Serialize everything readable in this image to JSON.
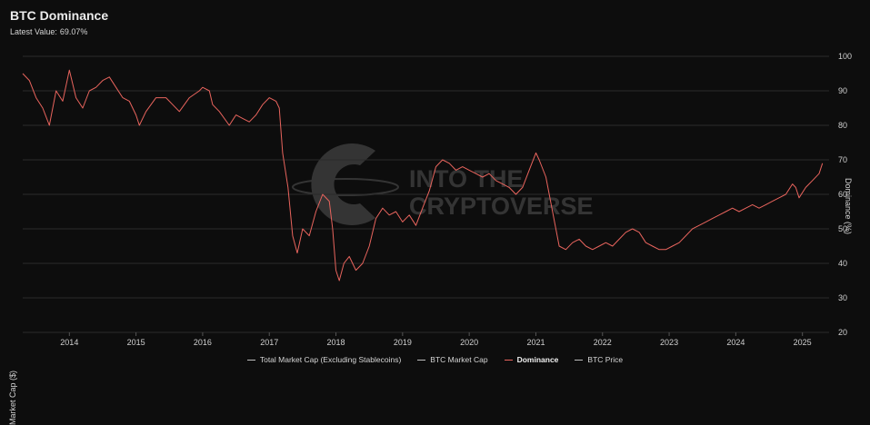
{
  "header": {
    "title": "BTC Dominance",
    "latest_label": "Latest Value:",
    "latest_value": "69.07%"
  },
  "axes": {
    "left_label": "Market Cap ($)",
    "right_label": "Dominance (%)"
  },
  "watermark": {
    "line1": "INTO THE",
    "line2": "CRYPTOVERSE"
  },
  "legend": [
    {
      "label": "Total Market Cap (Excluding Stablecoins)",
      "active": false
    },
    {
      "label": "BTC Market Cap",
      "active": false
    },
    {
      "label": "Dominance",
      "active": true
    },
    {
      "label": "BTC Price",
      "active": false
    }
  ],
  "colors": {
    "background": "#0d0d0d",
    "series": "#e8645d",
    "grid": "#2a2a2a"
  },
  "chart_data": {
    "type": "line",
    "title": "BTC Dominance",
    "ylabel": "Dominance (%)",
    "y_ticks": [
      "20",
      "30",
      "40",
      "50",
      "60",
      "70",
      "80",
      "90",
      "100"
    ],
    "ylim": [
      20,
      100
    ],
    "x_ticks": [
      "2014",
      "2015",
      "2016",
      "2017",
      "2018",
      "2019",
      "2020",
      "2021",
      "2022",
      "2023",
      "2024",
      "2025"
    ],
    "xlim": [
      2013.3,
      2025.4
    ],
    "grid": "horizontal",
    "series": [
      {
        "name": "Dominance",
        "x": [
          2013.3,
          2013.4,
          2013.5,
          2013.6,
          2013.7,
          2013.8,
          2013.9,
          2014.0,
          2014.1,
          2014.2,
          2014.3,
          2014.4,
          2014.5,
          2014.6,
          2014.7,
          2014.8,
          2014.9,
          2015.0,
          2015.05,
          2015.15,
          2015.3,
          2015.45,
          2015.55,
          2015.65,
          2015.8,
          2015.95,
          2016.0,
          2016.1,
          2016.15,
          2016.25,
          2016.4,
          2016.5,
          2016.6,
          2016.7,
          2016.8,
          2016.9,
          2017.0,
          2017.1,
          2017.15,
          2017.2,
          2017.28,
          2017.35,
          2017.42,
          2017.5,
          2017.6,
          2017.7,
          2017.8,
          2017.9,
          2017.95,
          2018.0,
          2018.05,
          2018.12,
          2018.2,
          2018.3,
          2018.4,
          2018.5,
          2018.6,
          2018.7,
          2018.8,
          2018.9,
          2019.0,
          2019.1,
          2019.2,
          2019.3,
          2019.4,
          2019.5,
          2019.6,
          2019.7,
          2019.8,
          2019.9,
          2020.0,
          2020.1,
          2020.2,
          2020.3,
          2020.4,
          2020.5,
          2020.6,
          2020.7,
          2020.8,
          2020.9,
          2021.0,
          2021.05,
          2021.15,
          2021.25,
          2021.35,
          2021.45,
          2021.55,
          2021.65,
          2021.75,
          2021.85,
          2021.95,
          2022.05,
          2022.15,
          2022.25,
          2022.35,
          2022.45,
          2022.55,
          2022.65,
          2022.75,
          2022.85,
          2022.95,
          2023.05,
          2023.15,
          2023.25,
          2023.35,
          2023.45,
          2023.55,
          2023.65,
          2023.75,
          2023.85,
          2023.95,
          2024.05,
          2024.15,
          2024.25,
          2024.35,
          2024.45,
          2024.55,
          2024.65,
          2024.75,
          2024.85,
          2024.9,
          2024.95,
          2025.05,
          2025.15,
          2025.25,
          2025.3
        ],
        "values": [
          95,
          93,
          88,
          85,
          80,
          90,
          87,
          96,
          88,
          85,
          90,
          91,
          93,
          94,
          91,
          88,
          87,
          83,
          80,
          84,
          88,
          88,
          86,
          84,
          88,
          90,
          91,
          90,
          86,
          84,
          80,
          83,
          82,
          81,
          83,
          86,
          88,
          87,
          85,
          72,
          62,
          48,
          43,
          50,
          48,
          55,
          60,
          58,
          50,
          38,
          35,
          40,
          42,
          38,
          40,
          45,
          53,
          56,
          54,
          55,
          52,
          54,
          51,
          56,
          61,
          68,
          70,
          69,
          67,
          68,
          67,
          66,
          65,
          66,
          64,
          63,
          62,
          60,
          62,
          67,
          72,
          70,
          65,
          55,
          45,
          44,
          46,
          47,
          45,
          44,
          45,
          46,
          45,
          47,
          49,
          50,
          49,
          46,
          45,
          44,
          44,
          45,
          46,
          48,
          50,
          51,
          52,
          53,
          54,
          55,
          56,
          55,
          56,
          57,
          56,
          57,
          58,
          59,
          60,
          63,
          62,
          59,
          62,
          64,
          66,
          69
        ]
      }
    ]
  }
}
